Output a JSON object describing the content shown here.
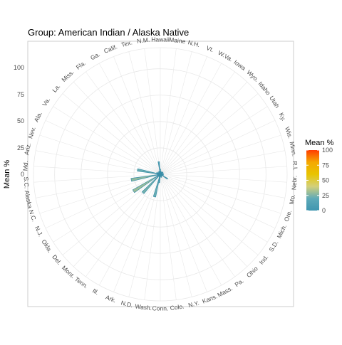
{
  "chart_data": {
    "type": "bar",
    "coord": "polar",
    "title": "Group: American Indian / Alaska Native",
    "xlabel": "",
    "ylabel": "Mean %",
    "ylim": [
      0,
      120
    ],
    "y_ticks": [
      "100",
      "75",
      "50",
      "25",
      "0"
    ],
    "grid": true,
    "categories": [
      "Hawaii",
      "Maine",
      "N.H.",
      "Vt.",
      "W.Va.",
      "Iowa",
      "Wyo.",
      "Idaho",
      "Utah",
      "Ky.",
      "Wis.",
      "Minn.",
      "R.I.",
      "Nebr.",
      "Mo.",
      "Ore.",
      "Mich.",
      "S.D.",
      "Ind.",
      "Ohio",
      "Pa.",
      "Mass.",
      "Kans.",
      "N.Y.",
      "Colo.",
      "Conn.",
      "Wash.",
      "N.D.",
      "Ark.",
      "Ill.",
      "Tenn.",
      "Mont.",
      "Del.",
      "Okla.",
      "N.J.",
      "N.C.",
      "Alaska",
      "S.C.",
      "Md.",
      "Ariz.",
      "Nev.",
      "Ala.",
      "Va.",
      "La.",
      "Miss.",
      "Fla.",
      "Ga.",
      "Calif.",
      "Tex.",
      "N.M."
    ],
    "values": [
      5,
      2,
      3,
      1,
      2,
      2,
      3,
      2,
      3,
      2,
      2,
      3,
      2,
      3,
      2,
      3,
      2,
      8,
      2,
      2,
      2,
      2,
      3,
      3,
      2,
      2,
      8,
      22,
      3,
      2,
      2,
      24,
      3,
      30,
      3,
      3,
      28,
      2,
      3,
      22,
      4,
      3,
      2,
      3,
      2,
      2,
      3,
      3,
      3,
      12
    ],
    "legend": {
      "title": "Mean %",
      "position": "right",
      "ticks": [
        "100",
        "75",
        "50",
        "25",
        "0"
      ],
      "gradient_colors": [
        "#ff3d00",
        "#f5a800",
        "#e8c400",
        "#d4d07a",
        "#5faab8",
        "#3f96b0"
      ]
    },
    "colors": {
      "panel_border": "#cccccc",
      "grid": "#e8e8e8",
      "bar_outline": "#3a8ea8",
      "text": "#4d4d4d"
    }
  }
}
